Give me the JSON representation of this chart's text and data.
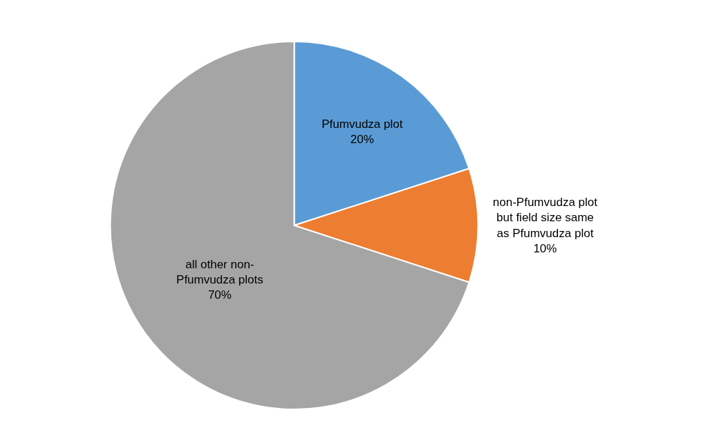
{
  "chart_data": {
    "type": "pie",
    "categories": [
      "Pfumvudza plot",
      "non-Pfumvudza plot but field size same as Pfumvudza plot",
      "all other non-Pfumvudza plots"
    ],
    "values": [
      20,
      10,
      70
    ],
    "value_labels": [
      "20%",
      "10%",
      "70%"
    ],
    "colors": [
      "#5b9bd5",
      "#ed7d31",
      "#a5a5a5"
    ],
    "legend": false
  }
}
